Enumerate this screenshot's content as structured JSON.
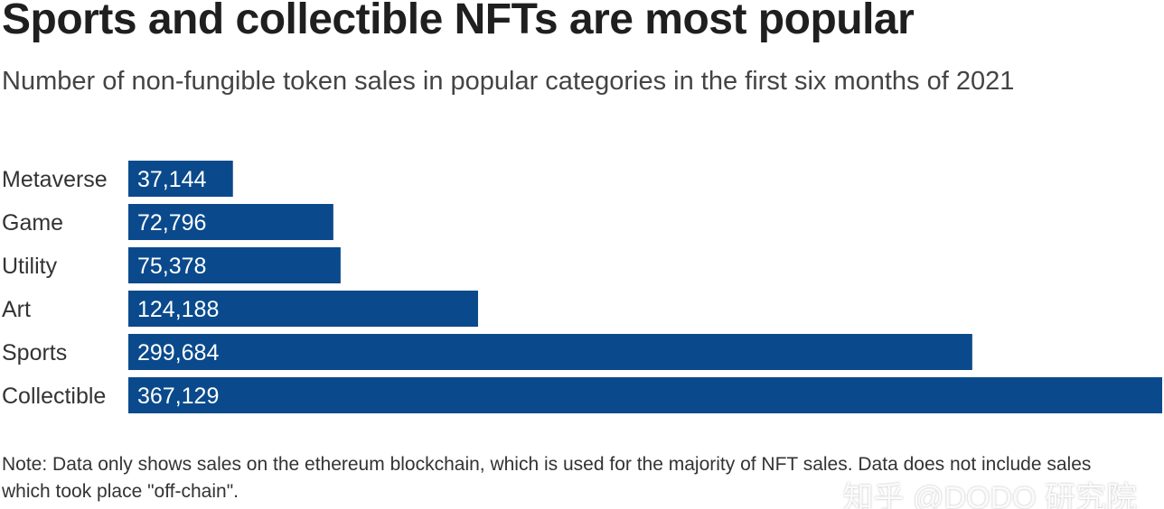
{
  "header": {
    "title": "Sports and collectible NFTs are most popular",
    "subtitle": "Number of non-fungible token sales in popular categories in the first six months of 2021"
  },
  "chart_data": {
    "type": "bar",
    "orientation": "horizontal",
    "title": "Sports and collectible NFTs are most popular",
    "subtitle": "Number of non-fungible token sales in popular categories in the first six months of 2021",
    "xlabel": "",
    "ylabel": "",
    "categories": [
      "Metaverse",
      "Game",
      "Utility",
      "Art",
      "Sports",
      "Collectible"
    ],
    "values": [
      37144,
      72796,
      75378,
      124188,
      299684,
      367129
    ],
    "value_labels": [
      "37,144",
      "72,796",
      "75,378",
      "124,188",
      "299,684",
      "367,129"
    ],
    "xlim": [
      0,
      367129
    ],
    "grid": false,
    "legend": "none",
    "bar_color": "#0a4a8c"
  },
  "footer": {
    "note": "Note: Data only shows sales on the ethereum blockchain, which is used for the majority of NFT sales. Data does not include sales which took place \"off-chain\"."
  },
  "watermark": "知乎 @DODO 研究院"
}
